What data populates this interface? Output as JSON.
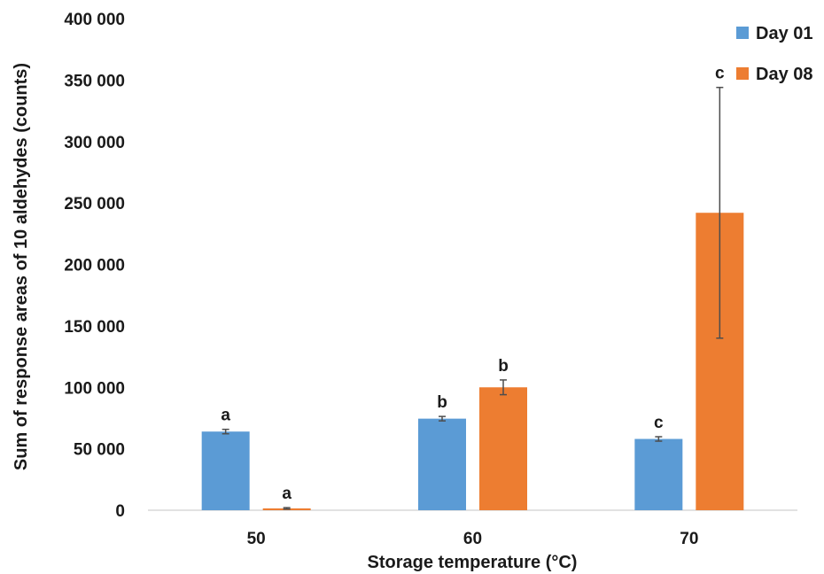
{
  "chart_data": {
    "type": "bar",
    "title": "",
    "xlabel": "Storage temperature (°C)",
    "ylabel": "Sum of response areas of 10 aldehydes (counts)",
    "categories": [
      "50",
      "60",
      "70"
    ],
    "ylim": [
      0,
      400000
    ],
    "yticks": [
      0,
      50000,
      100000,
      150000,
      200000,
      250000,
      300000,
      350000,
      400000
    ],
    "ytick_labels": [
      "0",
      "50 000",
      "100 000",
      "150 000",
      "200 000",
      "250 000",
      "300 000",
      "350 000",
      "400 000"
    ],
    "grid": false,
    "legend_position": "top-right",
    "series": [
      {
        "name": "Day 01",
        "color": "#5b9bd5",
        "values": [
          64000,
          74500,
          58000
        ],
        "errors": [
          1800,
          1800,
          1800
        ],
        "labels": [
          "a",
          "b",
          "c"
        ]
      },
      {
        "name": "Day 08",
        "color": "#ed7d31",
        "values": [
          1500,
          100000,
          242000
        ],
        "errors": [
          600,
          6000,
          102000
        ],
        "labels": [
          "a",
          "b",
          "c"
        ]
      }
    ]
  }
}
